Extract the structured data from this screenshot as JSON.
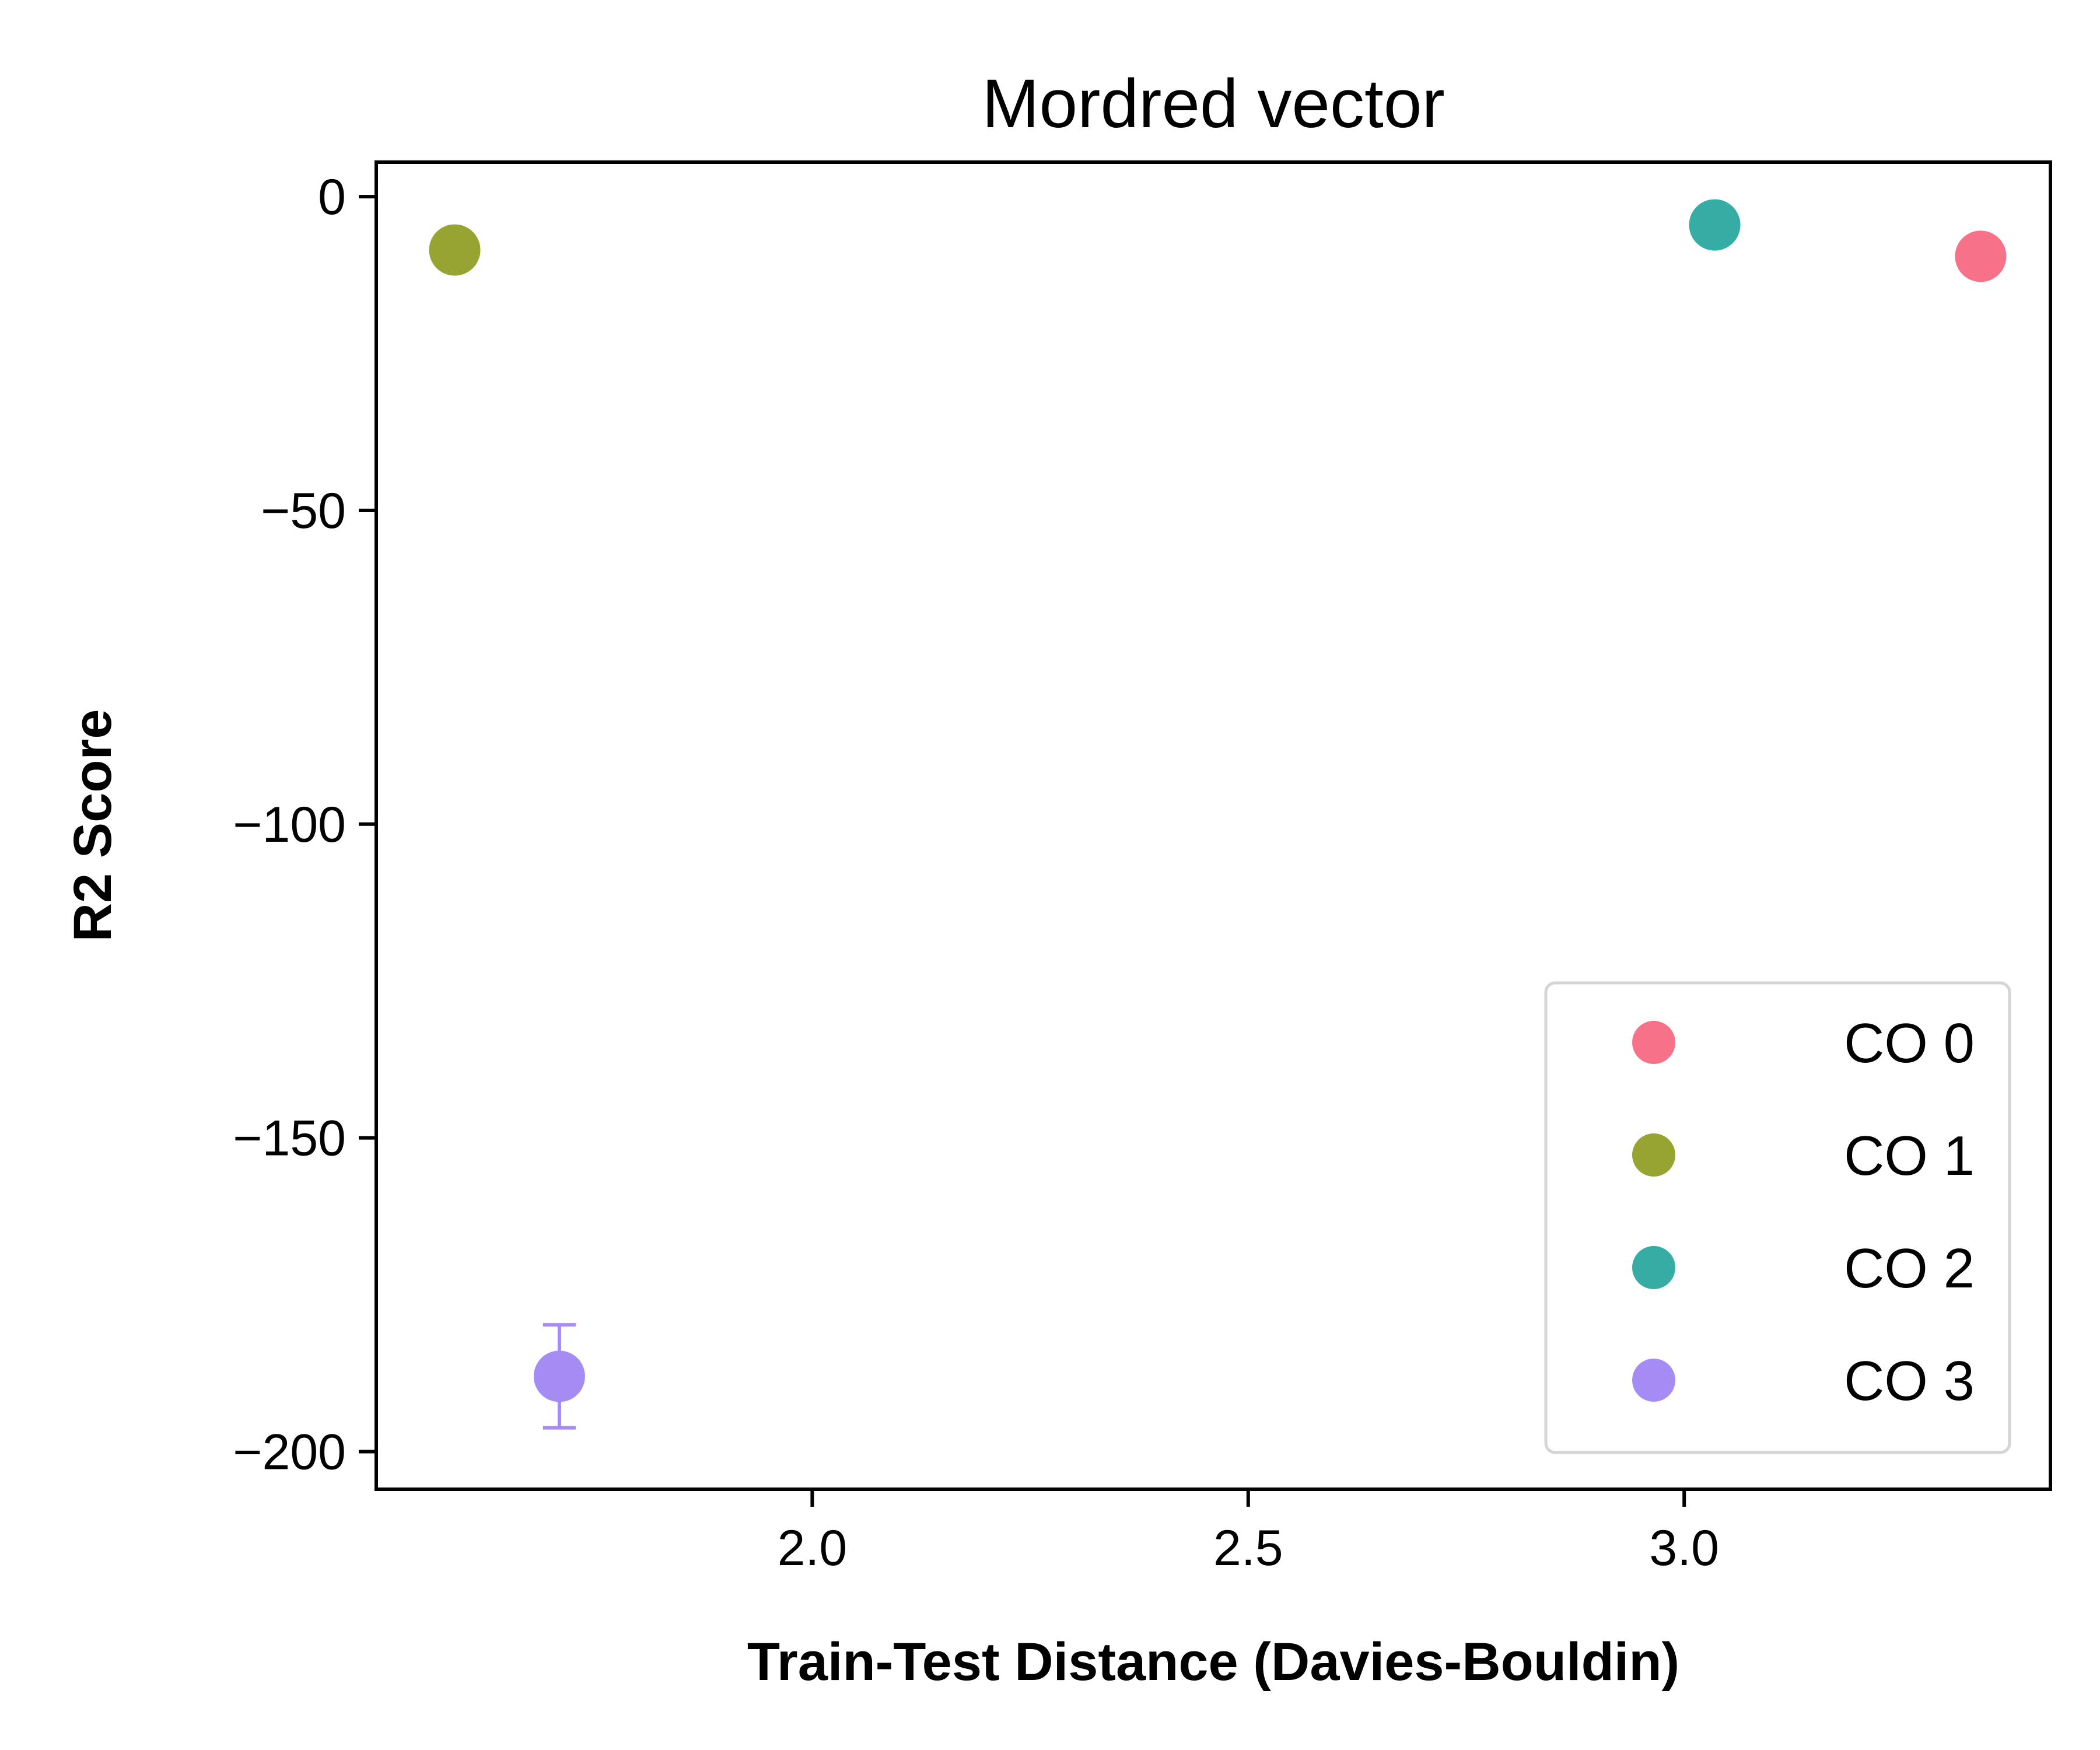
{
  "chart_data": {
    "type": "scatter",
    "title": "Mordred vector",
    "xlabel": "Train-Test Distance (Davies-Bouldin)",
    "ylabel": "R2 Score",
    "xlim": [
      1.5,
      3.42
    ],
    "ylim": [
      -206,
      5.5
    ],
    "xticks": [
      2.0,
      2.5,
      3.0
    ],
    "xtick_labels": [
      "2.0",
      "2.5",
      "3.0"
    ],
    "yticks": [
      0,
      -50,
      -100,
      -150,
      -200
    ],
    "ytick_labels": [
      "0",
      "−50",
      "−100",
      "−150",
      "−200"
    ],
    "grid": false,
    "legend_position": "lower-right",
    "series": [
      {
        "name": "CO 0",
        "color": "#f77189",
        "points": [
          {
            "x": 3.34,
            "y": -9.5
          }
        ]
      },
      {
        "name": "CO 1",
        "color": "#97a431",
        "points": [
          {
            "x": 1.59,
            "y": -8.5
          }
        ]
      },
      {
        "name": "CO 2",
        "color": "#36ada4",
        "points": [
          {
            "x": 3.035,
            "y": -4.5
          }
        ]
      },
      {
        "name": "CO 3",
        "color": "#a48cf4",
        "points": [
          {
            "x": 1.71,
            "y": -188,
            "yerr": 8.2
          }
        ]
      }
    ]
  }
}
